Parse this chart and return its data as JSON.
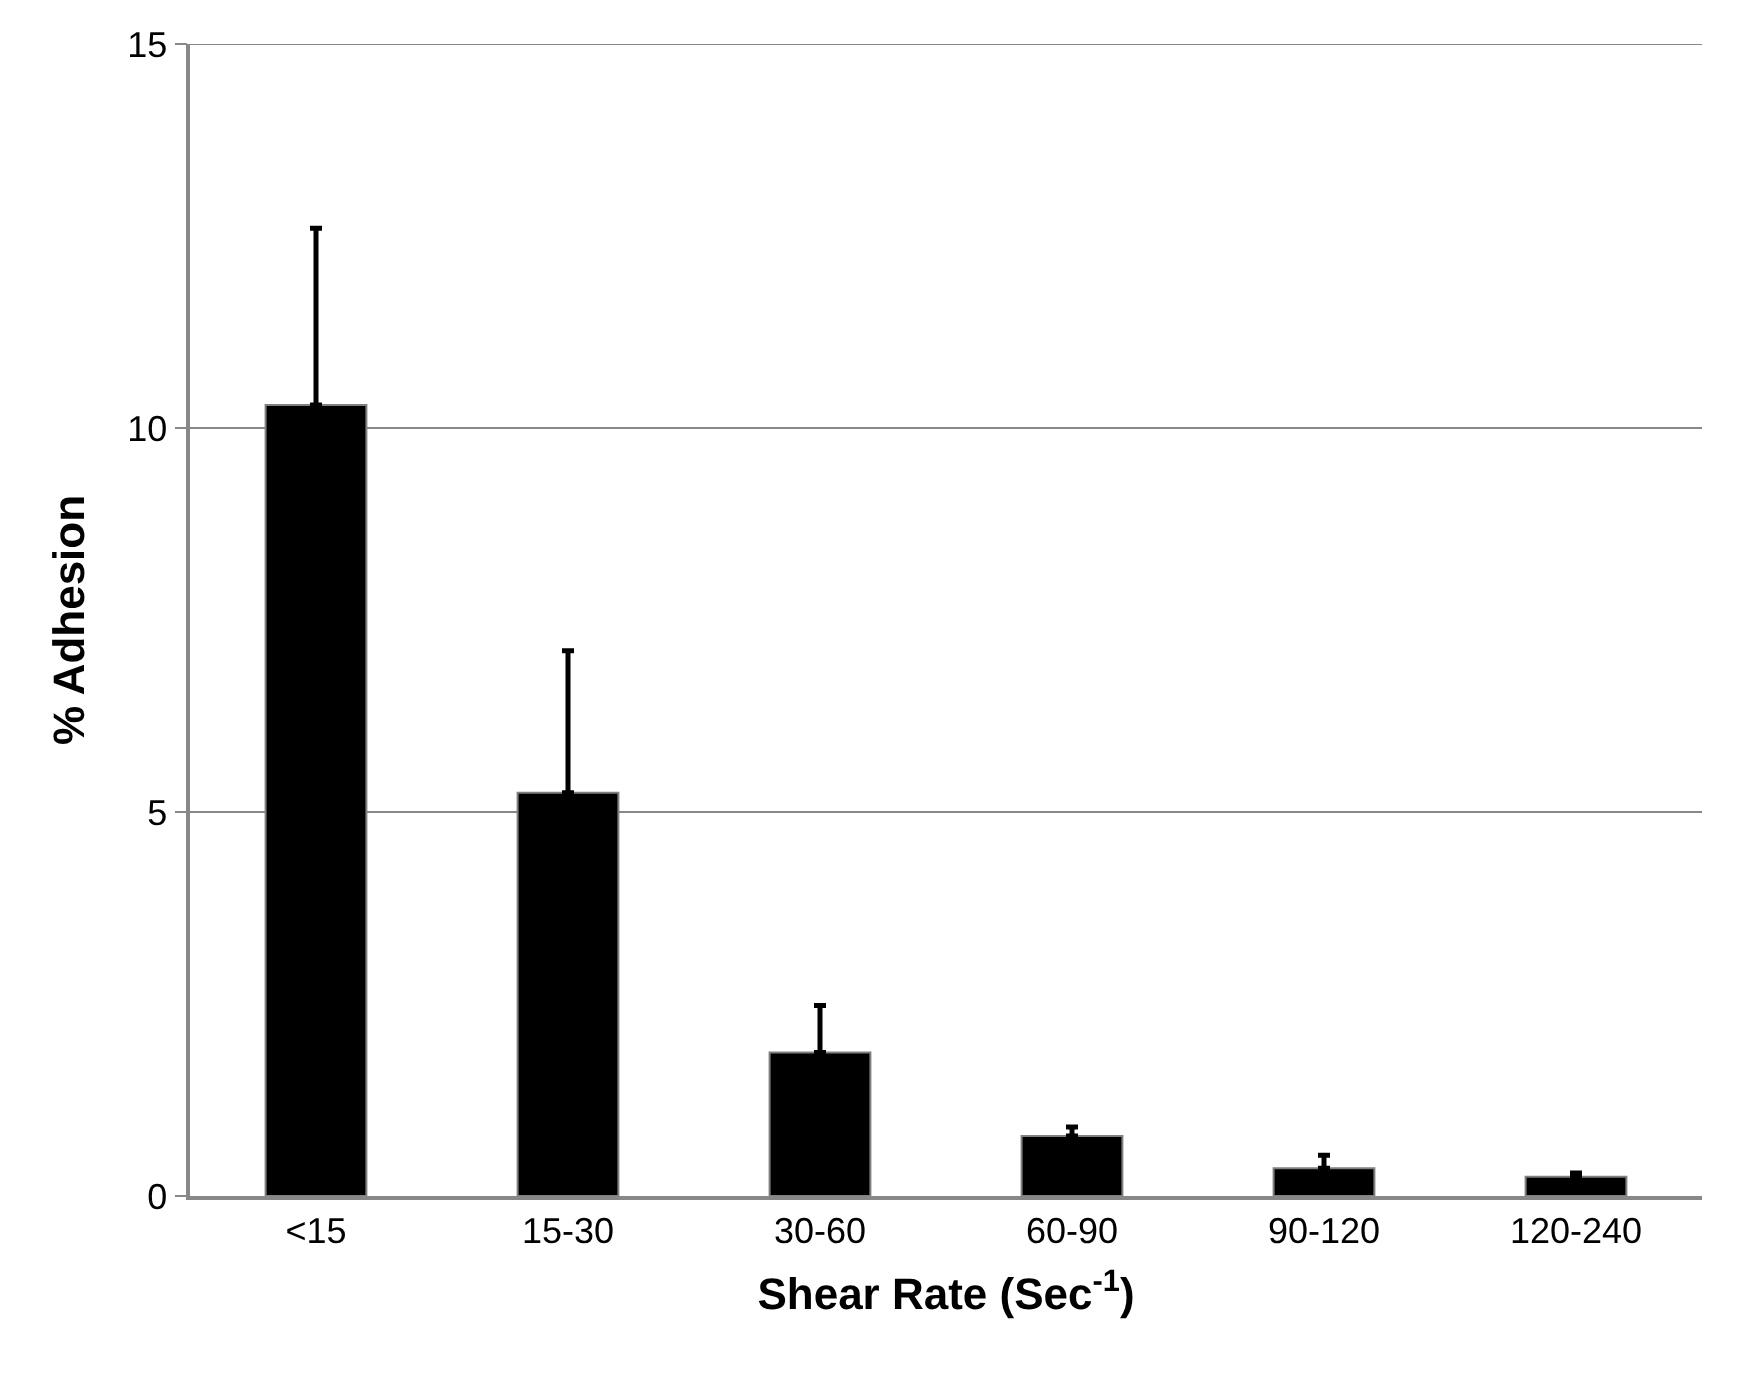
{
  "chart_data": {
    "type": "bar",
    "xlabel": "Shear Rate (Sec$^{-1}$)",
    "ylabel": "% Adhesion",
    "categories": [
      "<15",
      "15-30",
      "30-60",
      "60-90",
      "90-120",
      "120-240"
    ],
    "values": [
      10.3,
      5.25,
      1.87,
      0.78,
      0.36,
      0.25
    ],
    "errors": [
      [
        10.3,
        12.6
      ],
      [
        5.25,
        7.1
      ],
      [
        1.87,
        2.48
      ],
      [
        0.78,
        0.9
      ],
      [
        0.36,
        0.53
      ],
      [
        0.25,
        0.3
      ]
    ],
    "color": "#000000",
    "ylim": [
      0,
      15
    ],
    "yticks": [
      0,
      5,
      10,
      15
    ],
    "grid": "y"
  }
}
